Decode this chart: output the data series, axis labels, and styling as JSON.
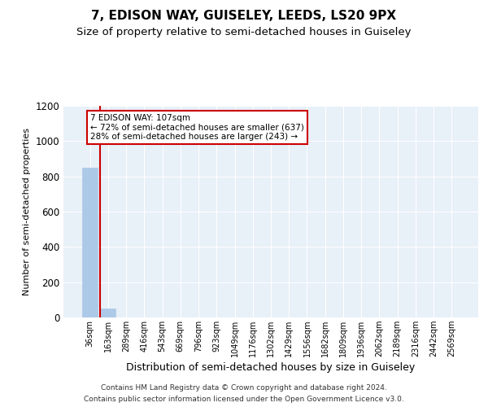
{
  "title": "7, EDISON WAY, GUISELEY, LEEDS, LS20 9PX",
  "subtitle": "Size of property relative to semi-detached houses in Guiseley",
  "xlabel": "Distribution of semi-detached houses by size in Guiseley",
  "ylabel": "Number of semi-detached properties",
  "footnote1": "Contains HM Land Registry data © Crown copyright and database right 2024.",
  "footnote2": "Contains public sector information licensed under the Open Government Licence v3.0.",
  "bin_labels": [
    "36sqm",
    "163sqm",
    "289sqm",
    "416sqm",
    "543sqm",
    "669sqm",
    "796sqm",
    "923sqm",
    "1049sqm",
    "1176sqm",
    "1302sqm",
    "1429sqm",
    "1556sqm",
    "1682sqm",
    "1809sqm",
    "1936sqm",
    "2062sqm",
    "2189sqm",
    "2316sqm",
    "2442sqm",
    "2569sqm"
  ],
  "bar_values": [
    850,
    50,
    0,
    0,
    0,
    0,
    0,
    0,
    0,
    0,
    0,
    0,
    0,
    0,
    0,
    0,
    0,
    0,
    0,
    0,
    0
  ],
  "bar_color": "#adc9e8",
  "bar_edge_color": "#adc9e8",
  "property_line_color": "#cc0000",
  "annotation_text": "7 EDISON WAY: 107sqm\n← 72% of semi-detached houses are smaller (637)\n28% of semi-detached houses are larger (243) →",
  "annotation_box_color": "#cc0000",
  "ylim": [
    0,
    1200
  ],
  "yticks": [
    0,
    200,
    400,
    600,
    800,
    1000,
    1200
  ],
  "plot_bg_color": "#e8f0f8",
  "title_fontsize": 11,
  "subtitle_fontsize": 9.5,
  "xlabel_fontsize": 9,
  "ylabel_fontsize": 8,
  "footnote_fontsize": 6.5
}
